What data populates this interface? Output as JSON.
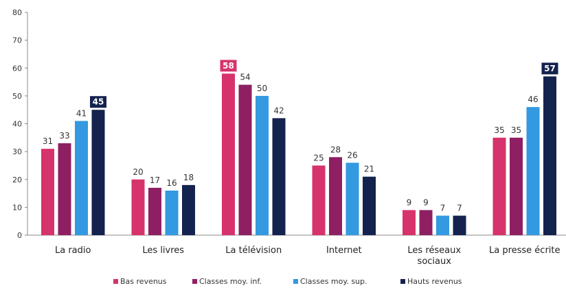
{
  "chart_data": {
    "type": "bar",
    "title": "",
    "xlabel": "",
    "ylabel": "",
    "ylim": [
      0,
      80
    ],
    "yticks": [
      0,
      10,
      20,
      30,
      40,
      50,
      60,
      70,
      80
    ],
    "grid": false,
    "legend_position": "bottom",
    "categories": [
      [
        "La radio"
      ],
      [
        "Les livres"
      ],
      [
        "La télévision"
      ],
      [
        "Internet"
      ],
      [
        "Les réseaux",
        "sociaux"
      ],
      [
        "La presse écrite"
      ]
    ],
    "series": [
      {
        "name": "Bas revenus",
        "color": "#D6336C",
        "values": [
          31,
          20,
          58,
          25,
          9,
          35
        ]
      },
      {
        "name": "Classes moy. inf.",
        "color": "#8E1F62",
        "values": [
          33,
          17,
          54,
          28,
          9,
          35
        ]
      },
      {
        "name": "Classes moy. sup.",
        "color": "#3399E0",
        "values": [
          41,
          16,
          50,
          26,
          7,
          46
        ]
      },
      {
        "name": "Hauts revenus",
        "color": "#14224E",
        "values": [
          45,
          18,
          42,
          21,
          7,
          57
        ]
      }
    ],
    "highlights": [
      {
        "series": 3,
        "category": 0
      },
      {
        "series": 0,
        "category": 2
      },
      {
        "series": 3,
        "category": 5
      }
    ]
  }
}
